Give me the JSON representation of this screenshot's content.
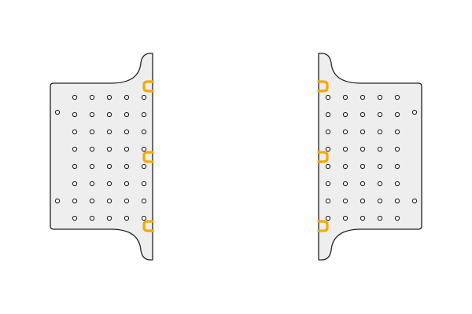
{
  "panels": [
    {
      "side": "left",
      "hole_grid": {
        "rows": 8,
        "cols": 5
      },
      "edge_holes": 2,
      "clips": 3
    },
    {
      "side": "right",
      "hole_grid": {
        "rows": 8,
        "cols": 5
      },
      "edge_holes": 2,
      "clips": 3
    }
  ],
  "colors": {
    "panel_fill": "#eeeeee",
    "panel_stroke": "#222222",
    "hole_fill": "#ffffff",
    "clip": "#f5a800",
    "background": "#ffffff"
  }
}
